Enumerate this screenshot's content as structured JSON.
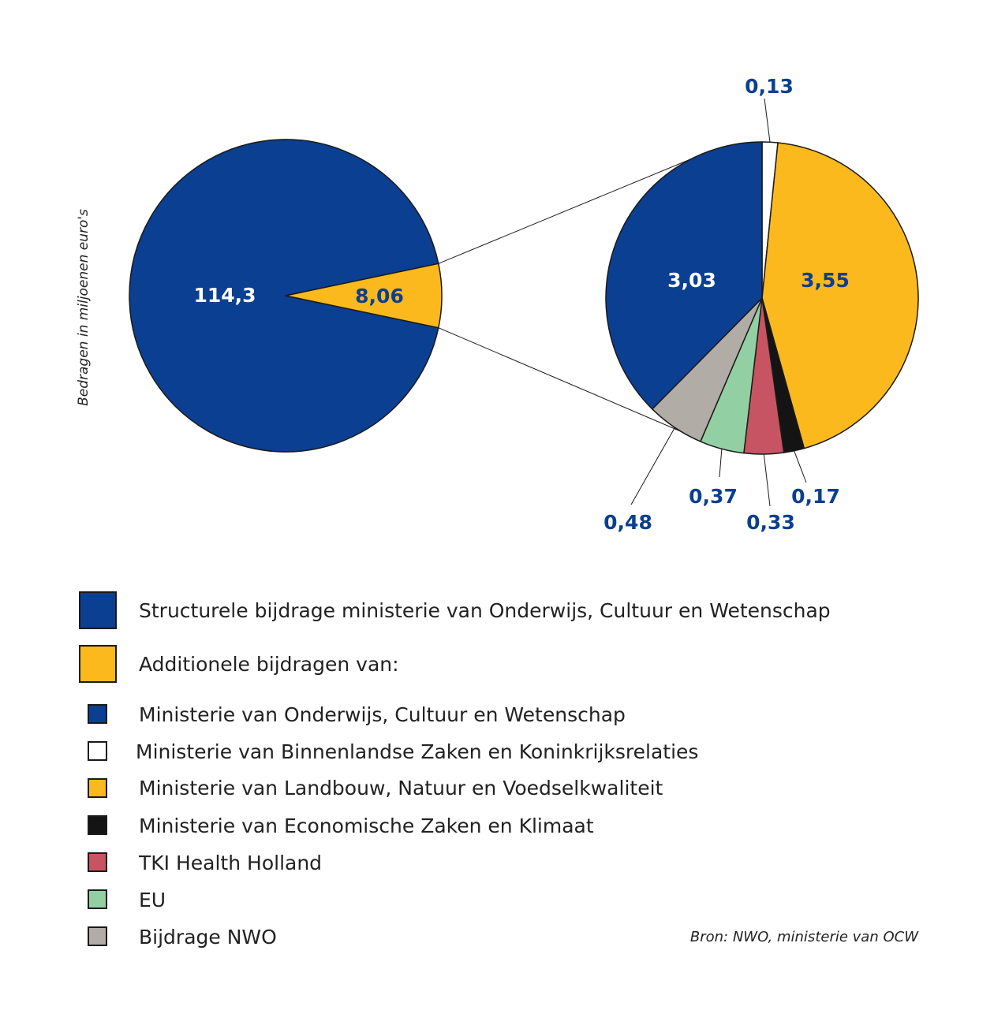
{
  "axis_note": "Bedragen in miljoenen euro's",
  "source": "Bron: NWO, ministerie van OCW",
  "chart_data": [
    {
      "type": "pie",
      "slices": [
        {
          "label": "114,3",
          "value": 114.3,
          "color": "#0b3f91",
          "legend": "Structurele bijdrage ministerie van Onderwijs, Cultuur en Wetenschap"
        },
        {
          "label": "8,06",
          "value": 8.06,
          "color": "#fbb91d",
          "legend": "Additionele bijdragen van:"
        }
      ]
    },
    {
      "type": "pie",
      "slices": [
        {
          "label": "0,13",
          "value": 0.13,
          "color": "#ffffff",
          "legend": "Ministerie van Binnenlandse Zaken en Koninkrijksrelaties"
        },
        {
          "label": "3,55",
          "value": 3.55,
          "color": "#fbb91d",
          "legend": "Ministerie van Landbouw, Natuur en Voedselkwaliteit"
        },
        {
          "label": "0,17",
          "value": 0.17,
          "color": "#141414",
          "legend": "Ministerie van Economische Zaken en Klimaat"
        },
        {
          "label": "0,33",
          "value": 0.33,
          "color": "#c75462",
          "legend": "TKI Health Holland"
        },
        {
          "label": "0,37",
          "value": 0.37,
          "color": "#92d0a4",
          "legend": "EU"
        },
        {
          "label": "0,48",
          "value": 0.48,
          "color": "#b2aca6",
          "legend": "Bijdrage NWO"
        },
        {
          "label": "3,03",
          "value": 3.03,
          "color": "#0b3f91",
          "legend": "Ministerie van Onderwijs, Cultuur en Wetenschap"
        }
      ]
    }
  ],
  "legend": {
    "main": [
      {
        "text": "Structurele bijdrage ministerie van Onderwijs, Cultuur en Wetenschap",
        "color": "#0b3f91"
      },
      {
        "text": "Additionele bijdragen van:",
        "color": "#fbb91d"
      }
    ],
    "sub": [
      {
        "text": "Ministerie van Onderwijs, Cultuur en Wetenschap",
        "color": "#0b3f91"
      },
      {
        "text": "Ministerie van Binnenlandse Zaken en Koninkrijksrelaties",
        "color": "#ffffff"
      },
      {
        "text": "Ministerie van Landbouw, Natuur en Voedselkwaliteit",
        "color": "#fbb91d"
      },
      {
        "text": "Ministerie van Economische Zaken en Klimaat",
        "color": "#141414"
      },
      {
        "text": "TKI Health Holland",
        "color": "#c75462"
      },
      {
        "text": "EU",
        "color": "#92d0a4"
      },
      {
        "text": "Bijdrage NWO",
        "color": "#b2aca6"
      }
    ]
  }
}
